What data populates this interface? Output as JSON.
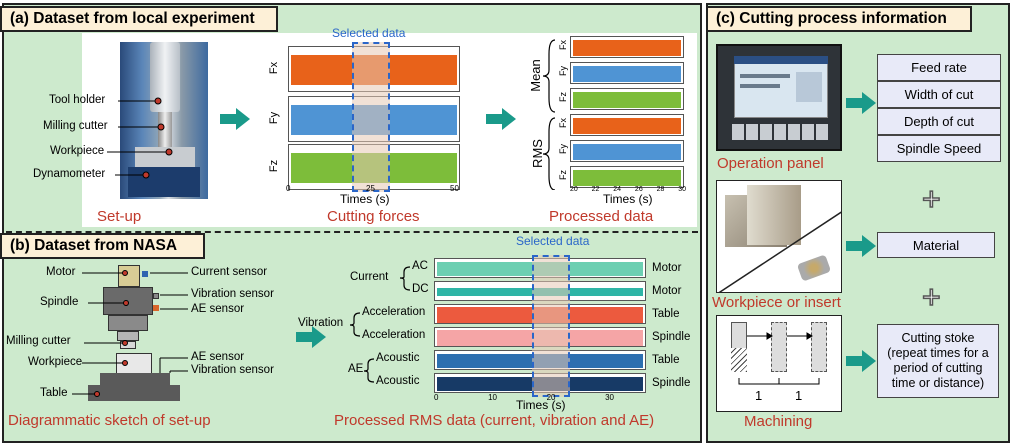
{
  "panel_a": {
    "title": "(a) Dataset from local experiment",
    "setup_labels": [
      "Tool holder",
      "Milling cutter",
      "Workpiece",
      "Dynamometer"
    ],
    "setup_caption": "Set-up",
    "selected_data": "Selected data",
    "force_channels": [
      "Fx",
      "Fy",
      "Fz"
    ],
    "force_ticks": [
      "0",
      "25",
      "50"
    ],
    "force_xlabel": "Times (s)",
    "force_caption": "Cutting forces",
    "mean_label": "Mean",
    "rms_label": "RMS",
    "processed_channels": [
      "Fx",
      "Fy",
      "Fz",
      "Fx",
      "Fy",
      "Fz"
    ],
    "processed_ticks": [
      "20",
      "22",
      "24",
      "26",
      "28",
      "30"
    ],
    "processed_xlabel": "Times (s)",
    "processed_caption": "Processed data"
  },
  "panel_b": {
    "title": "(b) Dataset from NASA",
    "sketch_labels_left": [
      "Motor",
      "Spindle",
      "Milling cutter",
      "Workpiece",
      "Table"
    ],
    "sketch_labels_right": [
      "Current sensor",
      "Vibration sensor",
      "AE sensor",
      "AE sensor",
      "Vibration sensor"
    ],
    "sketch_caption": "Diagrammatic sketch of set-up",
    "selected_data": "Selected data",
    "groups": [
      "Current",
      "Vibration",
      "AE"
    ],
    "signals": [
      "AC",
      "DC",
      "Acceleration",
      "Acceleration",
      "Acoustic",
      "Acoustic"
    ],
    "locations": [
      "Motor",
      "Motor",
      "Table",
      "Spindle",
      "Table",
      "Spindle"
    ],
    "ticks": [
      "0",
      "10",
      "20",
      "30"
    ],
    "xlabel": "Times (s)",
    "caption": "Processed RMS data (current, vibration and AE)"
  },
  "panel_c": {
    "title": "(c) Cutting process information",
    "operation_caption": "Operation panel",
    "params": [
      "Feed rate",
      "Width of cut",
      "Depth of cut",
      "Spindle Speed"
    ],
    "workpiece_caption": "Workpiece or insert",
    "material": "Material",
    "machining_caption": "Machining",
    "machining_marks": [
      "1",
      "1"
    ],
    "cutting_stoke": "Cutting stoke",
    "cutting_stoke_detail": "(repeat times for a period of cutting time or distance)",
    "plus": "+"
  },
  "colors": {
    "panel_bg": "#cdeacd",
    "title_bg": "#fdf0d7",
    "caption_red": "#c0392b",
    "arrow_teal": "#1a9a8a",
    "fx": "#e8621a",
    "fy": "#4f94d4",
    "fz": "#7dbd3a",
    "ac": "#6ccfb2",
    "dc": "#2eb5a6",
    "acc_table": "#ec5a3e",
    "acc_spindle": "#f5a5a6",
    "ae_table": "#2d6fb0",
    "ae_spindle": "#173a66"
  }
}
